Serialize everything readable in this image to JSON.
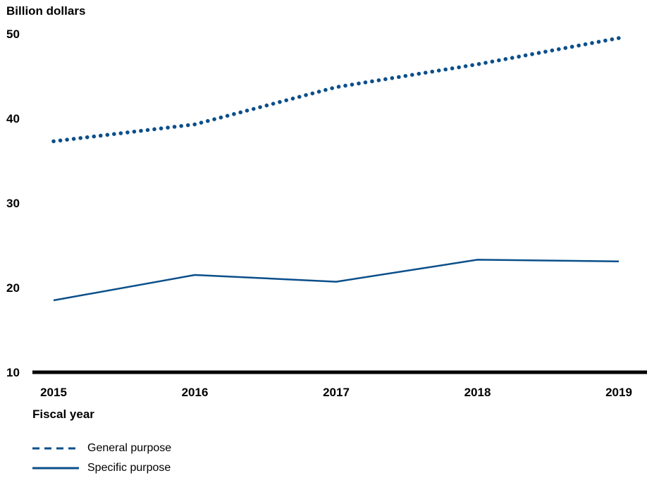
{
  "chart_data": {
    "type": "line",
    "title": "",
    "ylabel": "Billion dollars",
    "xlabel": "Fiscal year",
    "categories": [
      "2015",
      "2016",
      "2017",
      "2018",
      "2019"
    ],
    "yticks": [
      10,
      20,
      30,
      40,
      50
    ],
    "ylim": [
      10,
      50
    ],
    "grid": false,
    "legend_position": "bottom-left",
    "series": [
      {
        "name": "General purpose",
        "style": "dotted",
        "color": "#0b4f8a",
        "values": [
          37.3,
          39.3,
          43.7,
          46.4,
          49.5
        ]
      },
      {
        "name": "Specific purpose",
        "style": "solid",
        "color": "#0b4f8a",
        "values": [
          18.5,
          21.5,
          20.7,
          23.3,
          23.1
        ]
      }
    ]
  }
}
